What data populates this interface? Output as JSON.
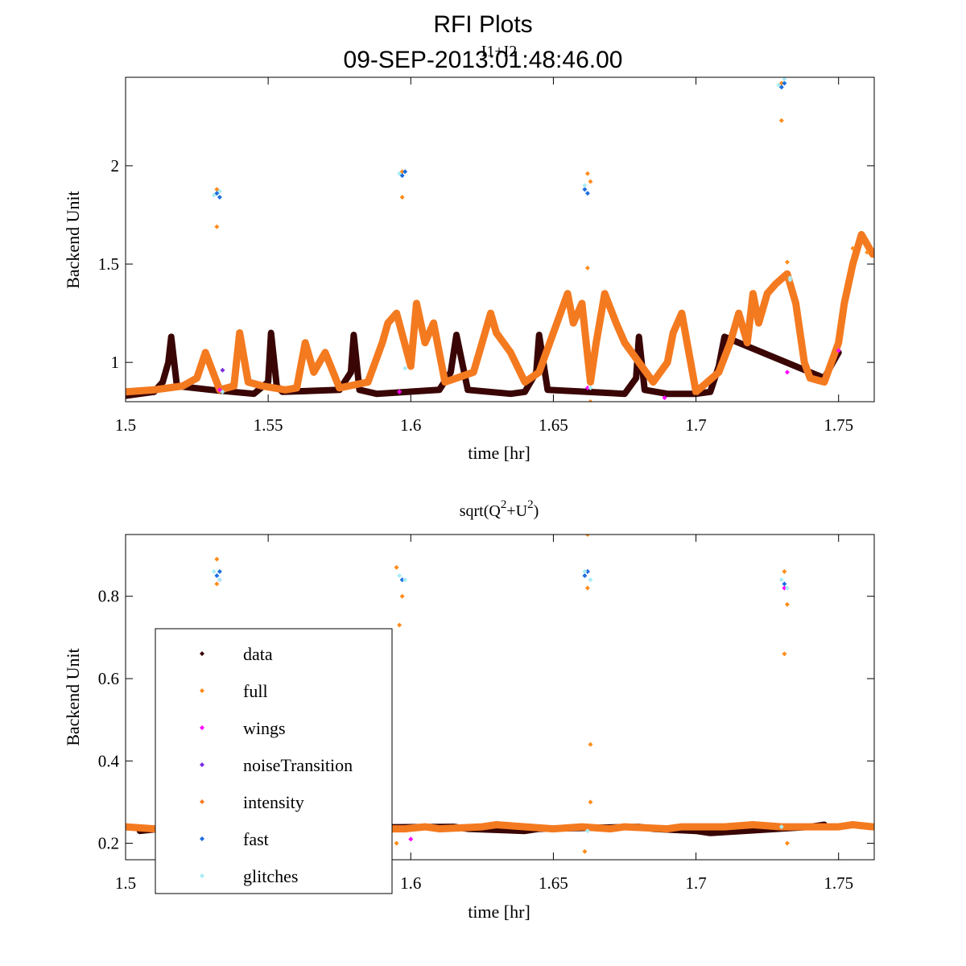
{
  "figure": {
    "title_line1": "RFI Plots",
    "title_line2": "09-SEP-2013:01:48:46.00"
  },
  "colors": {
    "data": "#3a0505",
    "full": "#ff8c1a",
    "wings": "#ff00ff",
    "noiseTransition": "#7a2be2",
    "intensity": "#f47a20",
    "fast": "#1e6fe0",
    "glitches": "#a8ecf4"
  },
  "legend": {
    "entries": [
      {
        "label": "data",
        "color_key": "data"
      },
      {
        "label": "full",
        "color_key": "full"
      },
      {
        "label": "wings",
        "color_key": "wings"
      },
      {
        "label": "noiseTransition",
        "color_key": "noiseTransition"
      },
      {
        "label": "intensity",
        "color_key": "intensity"
      },
      {
        "label": "fast",
        "color_key": "fast"
      },
      {
        "label": "glitches",
        "color_key": "glitches"
      }
    ]
  },
  "chart_data": [
    {
      "type": "scatter",
      "title": "I1+I2",
      "xlabel": "time [hr]",
      "ylabel": "Backend Unit",
      "xlim": [
        1.5,
        1.7625
      ],
      "ylim": [
        0.8,
        2.45
      ],
      "xticks": [
        1.5,
        1.55,
        1.6,
        1.65,
        1.7,
        1.75
      ],
      "xtick_labels": [
        "1.5",
        "1.55",
        "1.6",
        "1.65",
        "1.7",
        "1.75"
      ],
      "yticks": [
        1.0,
        1.5,
        2.0
      ],
      "ytick_labels": [
        "1",
        "1.5",
        "2"
      ],
      "series": [
        {
          "name": "data",
          "color_key": "data",
          "x": [
            1.5,
            1.505,
            1.51,
            1.513,
            1.515,
            1.516,
            1.518,
            1.53,
            1.545,
            1.55,
            1.551,
            1.553,
            1.555,
            1.575,
            1.579,
            1.58,
            1.582,
            1.588,
            1.61,
            1.614,
            1.616,
            1.62,
            1.635,
            1.64,
            1.644,
            1.645,
            1.648,
            1.675,
            1.679,
            1.68,
            1.682,
            1.69,
            1.7,
            1.705,
            1.708,
            1.71,
            1.745,
            1.748,
            1.75
          ],
          "y": [
            0.83,
            0.84,
            0.85,
            0.9,
            1.0,
            1.13,
            0.88,
            0.86,
            0.84,
            0.9,
            1.15,
            0.88,
            0.85,
            0.86,
            0.95,
            1.14,
            0.86,
            0.84,
            0.86,
            0.95,
            1.14,
            0.86,
            0.84,
            0.85,
            0.95,
            1.14,
            0.86,
            0.84,
            0.92,
            1.13,
            0.86,
            0.84,
            0.84,
            0.85,
            0.98,
            1.13,
            0.92,
            1.0,
            1.05
          ]
        },
        {
          "name": "intensity",
          "color_key": "intensity",
          "x": [
            1.5,
            1.51,
            1.52,
            1.525,
            1.528,
            1.533,
            1.538,
            1.54,
            1.543,
            1.548,
            1.556,
            1.56,
            1.563,
            1.566,
            1.57,
            1.575,
            1.585,
            1.59,
            1.592,
            1.595,
            1.6,
            1.602,
            1.605,
            1.608,
            1.612,
            1.622,
            1.625,
            1.628,
            1.63,
            1.635,
            1.64,
            1.645,
            1.65,
            1.655,
            1.657,
            1.66,
            1.663,
            1.665,
            1.668,
            1.672,
            1.675,
            1.685,
            1.69,
            1.692,
            1.695,
            1.7,
            1.708,
            1.712,
            1.715,
            1.718,
            1.72,
            1.722,
            1.725,
            1.728,
            1.732,
            1.735,
            1.738,
            1.74,
            1.745,
            1.75,
            1.752,
            1.755,
            1.758,
            1.762
          ],
          "y": [
            0.85,
            0.86,
            0.88,
            0.92,
            1.05,
            0.86,
            0.88,
            1.15,
            0.9,
            0.88,
            0.86,
            0.87,
            1.1,
            0.95,
            1.05,
            0.87,
            0.9,
            1.1,
            1.2,
            1.25,
            0.98,
            1.3,
            1.1,
            1.2,
            0.9,
            0.95,
            1.1,
            1.25,
            1.15,
            1.05,
            0.9,
            0.95,
            1.15,
            1.35,
            1.2,
            1.3,
            0.9,
            1.1,
            1.35,
            1.2,
            1.1,
            0.9,
            1.0,
            1.15,
            1.25,
            0.85,
            0.95,
            1.1,
            1.25,
            1.1,
            1.35,
            1.2,
            1.35,
            1.4,
            1.45,
            1.3,
            1.0,
            0.92,
            0.9,
            1.1,
            1.3,
            1.5,
            1.65,
            1.55
          ]
        },
        {
          "name": "full",
          "color_key": "full",
          "x": [
            1.532,
            1.532,
            1.597,
            1.597,
            1.662,
            1.662,
            1.663,
            1.663,
            1.73,
            1.73,
            1.732,
            1.755,
            1.76
          ],
          "y": [
            1.88,
            1.69,
            1.97,
            1.84,
            1.96,
            1.48,
            1.92,
            0.8,
            2.42,
            2.23,
            1.51,
            1.58,
            1.56
          ]
        },
        {
          "name": "wings",
          "color_key": "wings",
          "x": [
            1.533,
            1.596,
            1.662,
            1.689,
            1.732,
            1.75
          ],
          "y": [
            0.86,
            0.85,
            0.87,
            0.82,
            0.95,
            1.06
          ]
        },
        {
          "name": "noiseTransition",
          "color_key": "noiseTransition",
          "x": [
            1.534
          ],
          "y": [
            0.96
          ]
        },
        {
          "name": "fast",
          "color_key": "fast",
          "x": [
            1.532,
            1.533,
            1.597,
            1.598,
            1.661,
            1.662,
            1.73,
            1.731
          ],
          "y": [
            1.86,
            1.84,
            1.95,
            1.97,
            1.88,
            1.86,
            2.4,
            2.42
          ]
        },
        {
          "name": "glitches",
          "color_key": "glitches",
          "x": [
            1.531,
            1.533,
            1.534,
            1.596,
            1.598,
            1.661,
            1.663,
            1.729,
            1.731,
            1.733,
            1.733
          ],
          "y": [
            1.85,
            1.87,
            0.85,
            1.96,
            0.97,
            1.9,
            0.87,
            2.41,
            2.44,
            1.42,
            1.43
          ]
        }
      ]
    },
    {
      "type": "scatter",
      "title": "sqrt(Q",
      "title_parts": [
        "sqrt(Q",
        "2",
        "+U",
        "2",
        ")"
      ],
      "xlabel": "time [hr]",
      "ylabel": "Backend Unit",
      "xlim": [
        1.5,
        1.7625
      ],
      "ylim": [
        0.16,
        0.95
      ],
      "xticks": [
        1.5,
        1.55,
        1.6,
        1.65,
        1.7,
        1.75
      ],
      "xtick_labels": [
        "1.5",
        "1.55",
        "1.6",
        "1.65",
        "1.7",
        "1.75"
      ],
      "yticks": [
        0.2,
        0.4,
        0.6,
        0.8
      ],
      "ytick_labels": [
        "0.2",
        "0.4",
        "0.6",
        "0.8"
      ],
      "series": [
        {
          "name": "data",
          "color_key": "data",
          "x": [
            1.505,
            1.512,
            1.615,
            1.62,
            1.64,
            1.645,
            1.68,
            1.685,
            1.7,
            1.705,
            1.74,
            1.745
          ],
          "y": [
            0.23,
            0.235,
            0.24,
            0.235,
            0.23,
            0.235,
            0.24,
            0.235,
            0.23,
            0.225,
            0.24,
            0.245
          ]
        },
        {
          "name": "intensity",
          "color_key": "intensity",
          "x": [
            1.5,
            1.51,
            1.598,
            1.605,
            1.61,
            1.625,
            1.63,
            1.65,
            1.66,
            1.67,
            1.675,
            1.69,
            1.695,
            1.71,
            1.72,
            1.73,
            1.735,
            1.75,
            1.755,
            1.762
          ],
          "y": [
            0.24,
            0.235,
            0.235,
            0.24,
            0.235,
            0.24,
            0.245,
            0.235,
            0.24,
            0.235,
            0.24,
            0.235,
            0.24,
            0.24,
            0.245,
            0.24,
            0.24,
            0.24,
            0.245,
            0.24
          ]
        },
        {
          "name": "full",
          "color_key": "full",
          "x": [
            1.532,
            1.532,
            1.595,
            1.596,
            1.597,
            1.662,
            1.662,
            1.663,
            1.663,
            1.731,
            1.731,
            1.732,
            1.595,
            1.661,
            1.732
          ],
          "y": [
            0.89,
            0.83,
            0.87,
            0.73,
            0.8,
            0.95,
            0.82,
            0.44,
            0.3,
            0.86,
            0.66,
            0.78,
            0.2,
            0.18,
            0.2
          ]
        },
        {
          "name": "wings",
          "color_key": "wings",
          "x": [
            1.533,
            1.6,
            1.662,
            1.731
          ],
          "y": [
            0.84,
            0.21,
            0.86,
            0.82
          ]
        },
        {
          "name": "fast",
          "color_key": "fast",
          "x": [
            1.532,
            1.533,
            1.597,
            1.661,
            1.662,
            1.731
          ],
          "y": [
            0.85,
            0.86,
            0.84,
            0.85,
            0.86,
            0.83
          ]
        },
        {
          "name": "glitches",
          "color_key": "glitches",
          "x": [
            1.531,
            1.533,
            1.596,
            1.598,
            1.661,
            1.663,
            1.73,
            1.732,
            1.662,
            1.73
          ],
          "y": [
            0.86,
            0.84,
            0.85,
            0.84,
            0.86,
            0.84,
            0.84,
            0.82,
            0.23,
            0.24
          ]
        }
      ]
    }
  ]
}
